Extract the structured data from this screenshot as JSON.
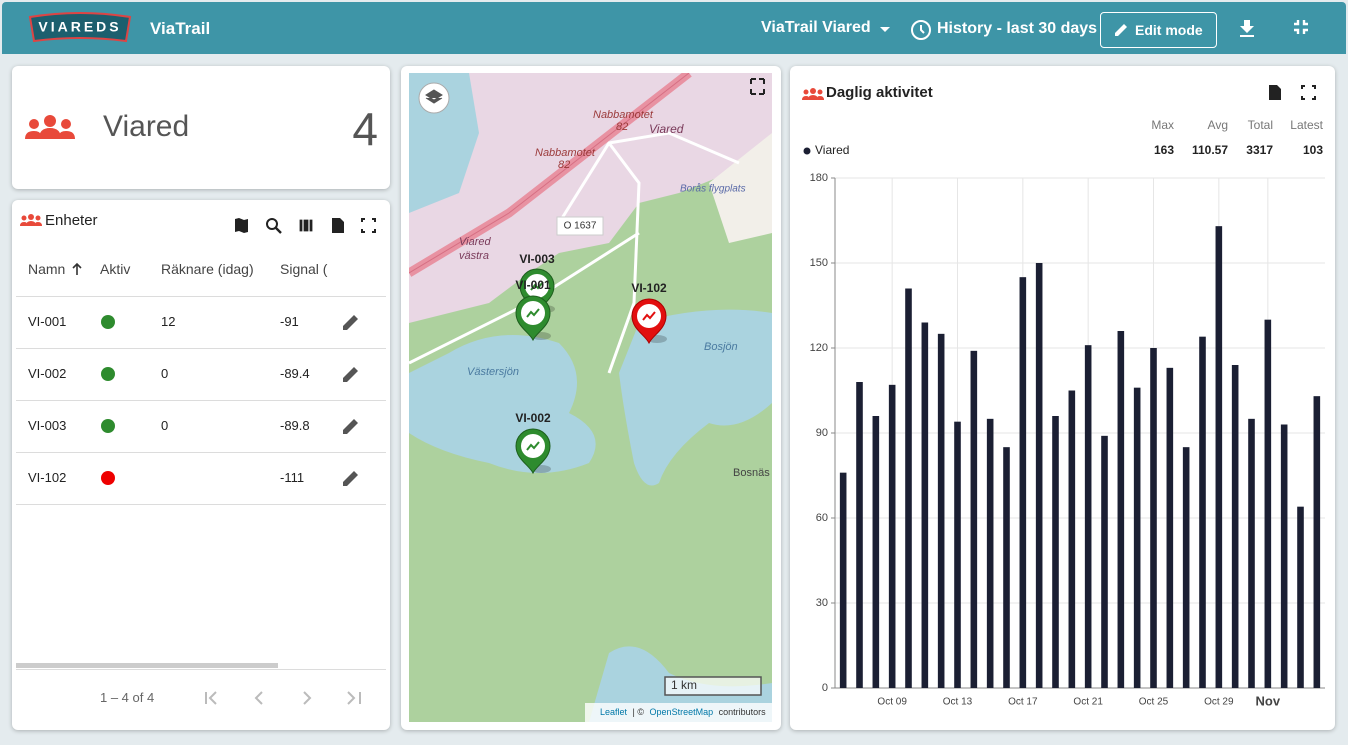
{
  "header": {
    "logo": "VIAREDS",
    "app_title": "ViaTrail",
    "site_selector": "ViaTrail Viared",
    "history": "History - last 30 days",
    "edit_button": "Edit mode"
  },
  "summary": {
    "name": "Viared",
    "count": 4
  },
  "units_table": {
    "title": "Enheter",
    "columns": [
      "Namn",
      "Aktiv",
      "Räknare (idag)",
      "Signal ("
    ],
    "rows": [
      {
        "name": "VI-001",
        "aktiv": true,
        "count": 12,
        "signal": -91
      },
      {
        "name": "VI-002",
        "aktiv": true,
        "count": 0,
        "signal": -89.4
      },
      {
        "name": "VI-003",
        "aktiv": true,
        "count": 0,
        "signal": -89.8
      },
      {
        "name": "VI-102",
        "aktiv": false,
        "count": null,
        "signal": -111
      }
    ],
    "pagination": "1 – 4 of 4"
  },
  "map": {
    "labels": [
      "Nabbamotet",
      "82",
      "Viared",
      "Nabbamotet",
      "82",
      "Borås flygplats",
      "O 1637",
      "Viared",
      "västra",
      "Västersjön",
      "Bosjön",
      "Bosnäs"
    ],
    "markers": [
      {
        "name": "VI-003",
        "aktiv": true
      },
      {
        "name": "VI-001",
        "aktiv": true
      },
      {
        "name": "VI-102",
        "aktiv": false
      },
      {
        "name": "VI-002",
        "aktiv": true
      }
    ],
    "scale": "1 km",
    "attribution": [
      "Leaflet",
      "| ©",
      "OpenStreetMap",
      "contributors"
    ]
  },
  "chart_data": {
    "type": "bar",
    "title": "Daglig aktivitet",
    "categories": [
      null,
      null,
      null,
      "Oct 09",
      null,
      null,
      null,
      "Oct 13",
      null,
      null,
      null,
      "Oct 17",
      null,
      null,
      null,
      "Oct 21",
      null,
      null,
      null,
      "Oct 25",
      null,
      null,
      null,
      "Oct 29",
      null,
      null,
      "Nov",
      null,
      null,
      null
    ],
    "series": [
      {
        "name": "Viared",
        "color": "#1b1f33",
        "values": [
          76,
          108,
          96,
          107,
          141,
          129,
          125,
          94,
          119,
          95,
          85,
          145,
          150,
          96,
          105,
          121,
          89,
          126,
          106,
          120,
          113,
          85,
          124,
          163,
          114,
          95,
          130,
          93,
          64,
          103
        ]
      }
    ],
    "stats": {
      "headers": [
        "Max",
        "Avg",
        "Total",
        "Latest"
      ],
      "values": [
        163,
        110.57,
        3317,
        103
      ]
    },
    "ylim": [
      0,
      180
    ],
    "yticks": [
      0,
      30,
      60,
      90,
      120,
      150,
      180
    ],
    "grid": true
  }
}
